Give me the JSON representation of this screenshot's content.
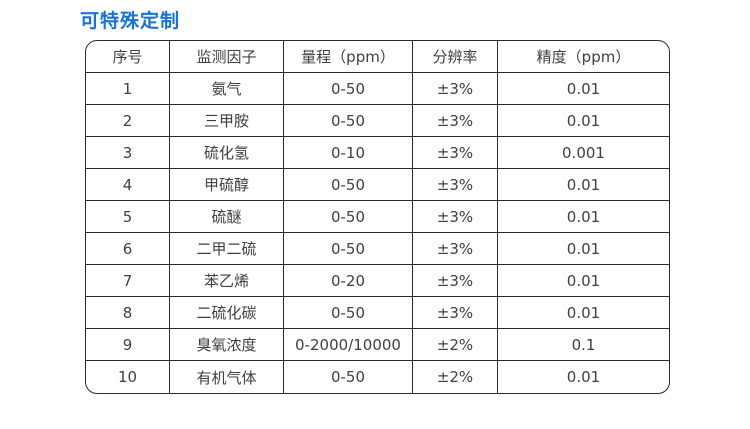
{
  "title": "可特殊定制",
  "colors": {
    "title": "#1673dd",
    "border": "#2b2b2b",
    "text": "#404040",
    "background": "#ffffff"
  },
  "table": {
    "headers": [
      "序号",
      "监测因子",
      "量程（ppm）",
      "分辨率",
      "精度（ppm）"
    ],
    "rows": [
      [
        "1",
        "氨气",
        "0-50",
        "±3%",
        "0.01"
      ],
      [
        "2",
        "三甲胺",
        "0-50",
        "±3%",
        "0.01"
      ],
      [
        "3",
        "硫化氢",
        "0-10",
        "±3%",
        "0.001"
      ],
      [
        "4",
        "甲硫醇",
        "0-50",
        "±3%",
        "0.01"
      ],
      [
        "5",
        "硫醚",
        "0-50",
        "±3%",
        "0.01"
      ],
      [
        "6",
        "二甲二硫",
        "0-50",
        "±3%",
        "0.01"
      ],
      [
        "7",
        "苯乙烯",
        "0-20",
        "±3%",
        "0.01"
      ],
      [
        "8",
        "二硫化碳",
        "0-50",
        "±3%",
        "0.01"
      ],
      [
        "9",
        "臭氧浓度",
        "0-2000/10000",
        "±2%",
        "0.1"
      ],
      [
        "10",
        "有机气体",
        "0-50",
        "±2%",
        "0.01"
      ]
    ]
  }
}
